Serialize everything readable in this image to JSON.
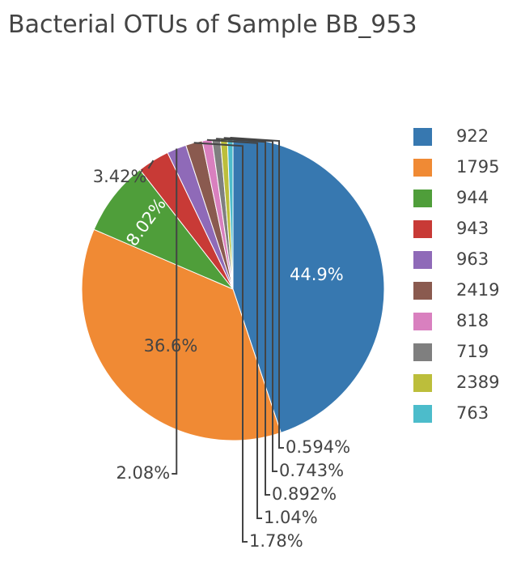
{
  "chart_data": {
    "type": "pie",
    "title": "Bacterial OTUs of Sample BB_953",
    "labels": [
      "922",
      "1795",
      "944",
      "943",
      "963",
      "2419",
      "818",
      "719",
      "2389",
      "763"
    ],
    "values": [
      44.9,
      36.6,
      8.02,
      3.42,
      2.08,
      1.78,
      1.04,
      0.892,
      0.743,
      0.594
    ],
    "text_labels": [
      "44.9%",
      "36.6%",
      "8.02%",
      "3.42%",
      "2.08%",
      "1.78%",
      "1.04%",
      "0.892%",
      "0.743%",
      "0.594%"
    ],
    "colors": [
      "#3778b0",
      "#f08a34",
      "#4f9e3a",
      "#c83a36",
      "#8f6ab8",
      "#8a5a4f",
      "#d980bf",
      "#7f7f7f",
      "#bcbe3b",
      "#4cbccb"
    ],
    "legend_position": "right"
  }
}
